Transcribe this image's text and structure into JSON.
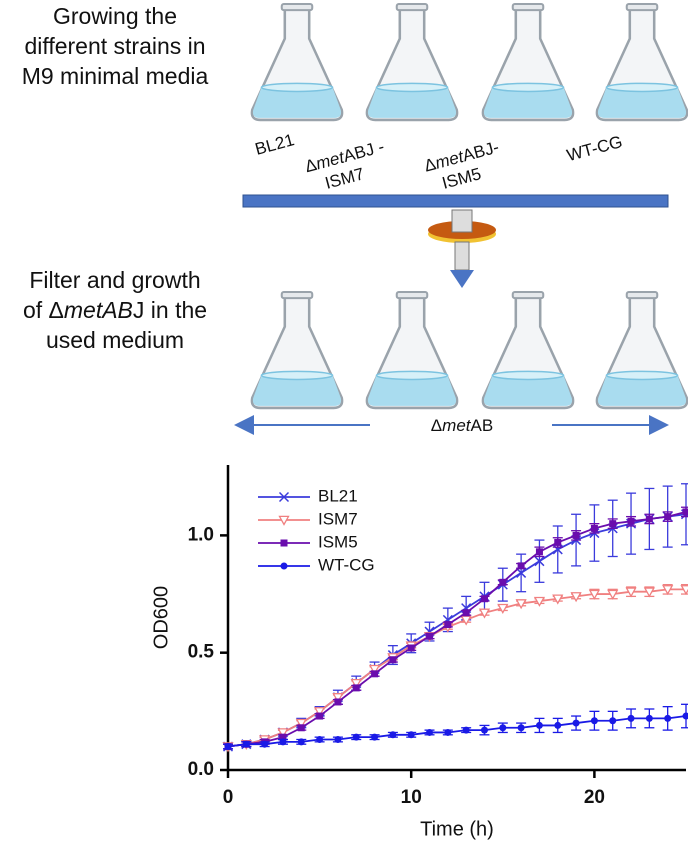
{
  "diagram": {
    "step1": [
      [
        {
          "text": "Growing the"
        }
      ],
      [
        {
          "text": "different strains in"
        }
      ],
      [
        {
          "text": "M9 minimal media"
        }
      ]
    ],
    "strains": [
      [
        [
          {
            "text": "BL21"
          }
        ]
      ],
      [
        [
          {
            "text": "Δ"
          },
          {
            "text": "met",
            "italic": true
          },
          {
            "text": "ABJ -"
          }
        ],
        [
          {
            "text": "ISM7"
          }
        ]
      ],
      [
        [
          {
            "text": "Δ"
          },
          {
            "text": "met",
            "italic": true
          },
          {
            "text": "ABJ-"
          }
        ],
        [
          {
            "text": "ISM5"
          }
        ]
      ],
      [
        [
          {
            "text": "WT-CG"
          }
        ]
      ]
    ],
    "step2": [
      [
        {
          "text": "Filter and growth"
        }
      ],
      [
        {
          "text": "of Δ"
        },
        {
          "text": "metAB",
          "italic": true
        },
        {
          "text": "J in the"
        }
      ],
      [
        {
          "text": "used medium"
        }
      ]
    ],
    "recipient": [
      [
        {
          "text": "Δ"
        },
        {
          "text": "met",
          "italic": true
        },
        {
          "text": "AB"
        }
      ]
    ]
  },
  "chart_data": {
    "type": "line",
    "xlabel": "Time (h)",
    "ylabel": "OD600",
    "x": [
      0,
      1,
      2,
      3,
      4,
      5,
      6,
      7,
      8,
      9,
      10,
      11,
      12,
      13,
      14,
      15,
      16,
      17,
      18,
      19,
      20,
      21,
      22,
      23,
      24,
      25
    ],
    "xlim": [
      0,
      25
    ],
    "xticks": [
      0,
      10,
      20
    ],
    "ylim": [
      0,
      1.3
    ],
    "yticks": [
      {
        "value": 0,
        "label": "0.0"
      },
      0.5,
      {
        "value": 1,
        "label": "1.0"
      }
    ],
    "legend": "upper left",
    "series": [
      {
        "name": "BL21",
        "color": "#3b3bdc",
        "marker": "x",
        "values": [
          0.1,
          0.11,
          0.13,
          0.16,
          0.2,
          0.25,
          0.31,
          0.37,
          0.43,
          0.49,
          0.54,
          0.59,
          0.64,
          0.69,
          0.74,
          0.79,
          0.84,
          0.89,
          0.94,
          0.98,
          1.01,
          1.03,
          1.05,
          1.07,
          1.08,
          1.09
        ],
        "errors": [
          0.01,
          0.01,
          0.01,
          0.01,
          0.02,
          0.02,
          0.03,
          0.03,
          0.03,
          0.04,
          0.04,
          0.04,
          0.05,
          0.05,
          0.06,
          0.07,
          0.08,
          0.09,
          0.1,
          0.11,
          0.12,
          0.12,
          0.13,
          0.13,
          0.13,
          0.13
        ]
      },
      {
        "name": "ISM7",
        "color": "#f08080",
        "marker": "triangle-down",
        "values": [
          0.1,
          0.11,
          0.13,
          0.16,
          0.2,
          0.25,
          0.31,
          0.37,
          0.43,
          0.48,
          0.53,
          0.57,
          0.61,
          0.64,
          0.67,
          0.69,
          0.71,
          0.72,
          0.73,
          0.74,
          0.75,
          0.75,
          0.76,
          0.76,
          0.77,
          0.77
        ],
        "errors": [
          0.01,
          0.01,
          0.01,
          0.01,
          0.01,
          0.01,
          0.01,
          0.01,
          0.01,
          0.01,
          0.01,
          0.01,
          0.01,
          0.01,
          0.01,
          0.01,
          0.01,
          0.01,
          0.01,
          0.01,
          0.02,
          0.02,
          0.02,
          0.02,
          0.02,
          0.02
        ]
      },
      {
        "name": "ISM5",
        "color": "#6a0dad",
        "marker": "square",
        "values": [
          0.1,
          0.11,
          0.12,
          0.14,
          0.18,
          0.23,
          0.29,
          0.35,
          0.41,
          0.47,
          0.52,
          0.57,
          0.62,
          0.67,
          0.73,
          0.8,
          0.87,
          0.93,
          0.97,
          1.0,
          1.03,
          1.05,
          1.06,
          1.07,
          1.08,
          1.1
        ],
        "errors": [
          0.01,
          0.01,
          0.01,
          0.01,
          0.01,
          0.01,
          0.01,
          0.01,
          0.01,
          0.01,
          0.01,
          0.01,
          0.01,
          0.01,
          0.01,
          0.01,
          0.01,
          0.02,
          0.02,
          0.02,
          0.02,
          0.02,
          0.02,
          0.02,
          0.02,
          0.02
        ]
      },
      {
        "name": "WT-CG",
        "color": "#1a1ae6",
        "marker": "circle",
        "values": [
          0.1,
          0.11,
          0.11,
          0.12,
          0.12,
          0.13,
          0.13,
          0.14,
          0.14,
          0.15,
          0.15,
          0.16,
          0.16,
          0.17,
          0.17,
          0.18,
          0.18,
          0.19,
          0.19,
          0.2,
          0.21,
          0.21,
          0.22,
          0.22,
          0.22,
          0.23
        ],
        "errors": [
          0.01,
          0.01,
          0.01,
          0.01,
          0.01,
          0.01,
          0.01,
          0.01,
          0.01,
          0.01,
          0.01,
          0.01,
          0.01,
          0.01,
          0.02,
          0.02,
          0.02,
          0.03,
          0.03,
          0.03,
          0.04,
          0.04,
          0.04,
          0.04,
          0.05,
          0.05
        ]
      }
    ]
  }
}
